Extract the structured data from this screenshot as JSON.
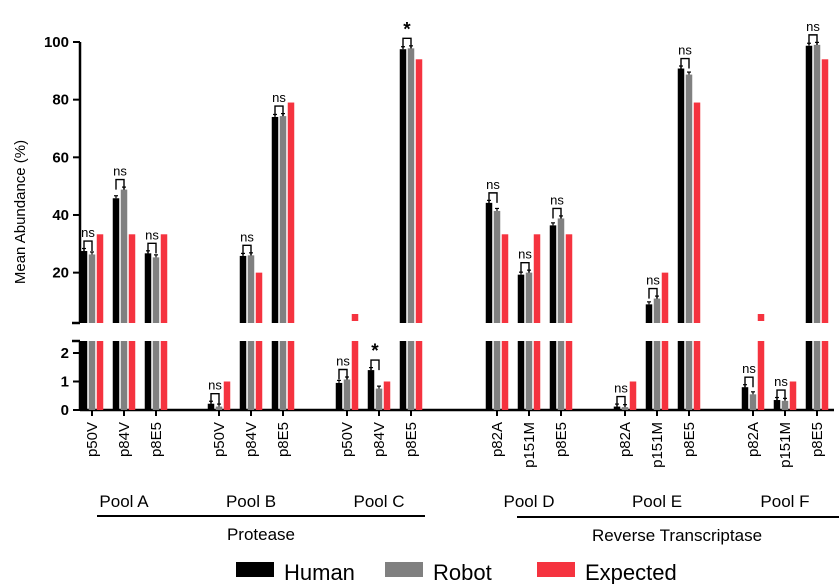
{
  "chart_data": {
    "type": "bar",
    "ylabel": "Mean Abundance (%)",
    "ylim_lower": [
      0,
      2.6
    ],
    "ylim_upper": [
      6,
      100
    ],
    "yticks_lower": [
      "0",
      "1",
      "2"
    ],
    "yticks_upper": [
      "20",
      "40",
      "60",
      "80",
      "100"
    ],
    "series": [
      {
        "name": "Human",
        "color": "#000000"
      },
      {
        "name": "Robot",
        "color": "#808080"
      },
      {
        "name": "Expected",
        "color": "#f5333f"
      }
    ],
    "categories": [
      {
        "label": "p50V",
        "pool": "Pool A",
        "values": [
          27.5,
          26.3,
          33.3
        ],
        "sig": "ns"
      },
      {
        "label": "p84V",
        "pool": "Pool A",
        "values": [
          45.8,
          48.8,
          33.3
        ],
        "sig": "ns"
      },
      {
        "label": "p8E5",
        "pool": "Pool A",
        "values": [
          26.7,
          25.3,
          33.3
        ],
        "sig": "ns"
      },
      {
        "label": "p50V",
        "pool": "Pool B",
        "values": [
          0.22,
          0.12,
          1.0
        ],
        "sig": "ns"
      },
      {
        "label": "p84V",
        "pool": "Pool B",
        "values": [
          25.8,
          26.0,
          20.0
        ],
        "sig": "ns"
      },
      {
        "label": "p8E5",
        "pool": "Pool B",
        "values": [
          74.0,
          74.3,
          79.0
        ],
        "sig": "ns"
      },
      {
        "label": "p50V",
        "pool": "Pool C",
        "values": [
          0.95,
          1.07,
          5.0
        ],
        "sig": "ns"
      },
      {
        "label": "p84V",
        "pool": "Pool C",
        "values": [
          1.4,
          0.75,
          1.0
        ],
        "sig": "*"
      },
      {
        "label": "p8E5",
        "pool": "Pool C",
        "values": [
          97.5,
          97.8,
          94.0
        ],
        "sig": "*"
      },
      {
        "label": "p82A",
        "pool": "Pool D",
        "values": [
          44.2,
          41.4,
          33.3
        ],
        "sig": "ns"
      },
      {
        "label": "p151M",
        "pool": "Pool D",
        "values": [
          19.3,
          20.0,
          33.3
        ],
        "sig": "ns"
      },
      {
        "label": "p8E5",
        "pool": "Pool D",
        "values": [
          36.4,
          38.8,
          33.3
        ],
        "sig": "ns"
      },
      {
        "label": "p82A",
        "pool": "Pool E",
        "values": [
          0.12,
          0.1,
          1.0
        ],
        "sig": "ns"
      },
      {
        "label": "p151M",
        "pool": "Pool E",
        "values": [
          9.0,
          11.0,
          20.0
        ],
        "sig": "ns"
      },
      {
        "label": "p8E5",
        "pool": "Pool E",
        "values": [
          90.8,
          88.7,
          79.0
        ],
        "sig": "ns"
      },
      {
        "label": "p82A",
        "pool": "Pool F",
        "values": [
          0.8,
          0.55,
          5.0
        ],
        "sig": "ns"
      },
      {
        "label": "p151M",
        "pool": "Pool F",
        "values": [
          0.35,
          0.32,
          1.0
        ],
        "sig": "ns"
      },
      {
        "label": "p8E5",
        "pool": "Pool F",
        "values": [
          98.7,
          99.0,
          94.0
        ],
        "sig": "ns"
      }
    ],
    "pools": [
      "Pool A",
      "Pool B",
      "Pool C",
      "Pool D",
      "Pool E",
      "Pool F"
    ],
    "groups": [
      {
        "label": "Protease",
        "pools": [
          "Pool A",
          "Pool B",
          "Pool C"
        ]
      },
      {
        "label": "Reverse Transcriptase",
        "pools": [
          "Pool D",
          "Pool E",
          "Pool F"
        ]
      }
    ],
    "legend_position": "bottom"
  }
}
